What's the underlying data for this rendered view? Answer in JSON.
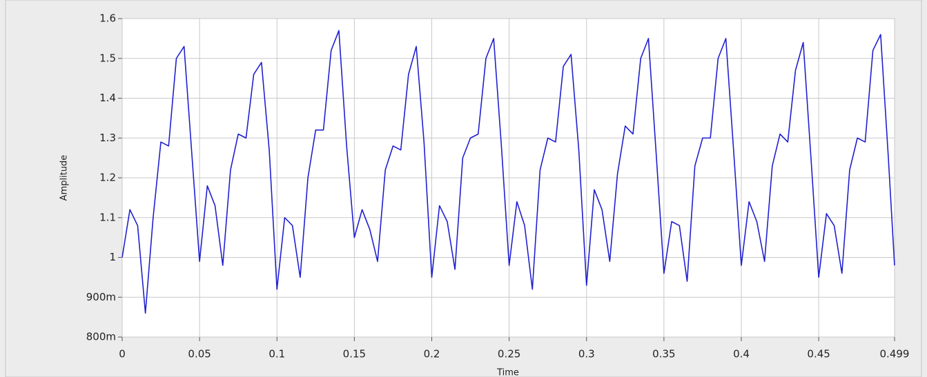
{
  "chart_data": {
    "type": "line",
    "x_label": "Time",
    "y_label": "Amplitude",
    "x": [
      0,
      0.005,
      0.01,
      0.015,
      0.02,
      0.025,
      0.03,
      0.035,
      0.04,
      0.045,
      0.05,
      0.055,
      0.06,
      0.065,
      0.07,
      0.075,
      0.08,
      0.085,
      0.09,
      0.095,
      0.1,
      0.105,
      0.11,
      0.115,
      0.12,
      0.125,
      0.13,
      0.135,
      0.14,
      0.145,
      0.15,
      0.155,
      0.16,
      0.165,
      0.17,
      0.175,
      0.18,
      0.185,
      0.19,
      0.195,
      0.2,
      0.205,
      0.21,
      0.215,
      0.22,
      0.225,
      0.23,
      0.235,
      0.24,
      0.245,
      0.25,
      0.255,
      0.26,
      0.265,
      0.27,
      0.275,
      0.28,
      0.285,
      0.29,
      0.295,
      0.3,
      0.305,
      0.31,
      0.315,
      0.32,
      0.325,
      0.33,
      0.335,
      0.34,
      0.345,
      0.35,
      0.355,
      0.36,
      0.365,
      0.37,
      0.375,
      0.38,
      0.385,
      0.39,
      0.395,
      0.4,
      0.405,
      0.41,
      0.415,
      0.42,
      0.425,
      0.43,
      0.435,
      0.44,
      0.445,
      0.45,
      0.455,
      0.46,
      0.465,
      0.47,
      0.475,
      0.48,
      0.485,
      0.49,
      0.495,
      0.499
    ],
    "series": [
      {
        "color": "#1f1fd0",
        "values": [
          1.0,
          1.12,
          1.08,
          0.86,
          1.1,
          1.29,
          1.28,
          1.5,
          1.53,
          1.26,
          0.99,
          1.18,
          1.13,
          0.98,
          1.22,
          1.31,
          1.3,
          1.46,
          1.49,
          1.27,
          0.92,
          1.1,
          1.08,
          0.95,
          1.2,
          1.32,
          1.32,
          1.52,
          1.57,
          1.28,
          1.05,
          1.12,
          1.07,
          0.99,
          1.22,
          1.28,
          1.27,
          1.46,
          1.53,
          1.29,
          0.95,
          1.13,
          1.09,
          0.97,
          1.25,
          1.3,
          1.31,
          1.5,
          1.55,
          1.28,
          0.98,
          1.14,
          1.08,
          0.92,
          1.22,
          1.3,
          1.29,
          1.48,
          1.51,
          1.27,
          0.93,
          1.17,
          1.12,
          0.99,
          1.21,
          1.33,
          1.31,
          1.5,
          1.55,
          1.26,
          0.96,
          1.09,
          1.08,
          0.94,
          1.23,
          1.3,
          1.3,
          1.5,
          1.55,
          1.27,
          0.98,
          1.14,
          1.09,
          0.99,
          1.23,
          1.31,
          1.29,
          1.47,
          1.54,
          1.25,
          0.95,
          1.11,
          1.08,
          0.96,
          1.22,
          1.3,
          1.29,
          1.52,
          1.56,
          1.25,
          0.98
        ]
      }
    ],
    "xlim": [
      0,
      0.499
    ],
    "xticks": [
      0,
      0.05,
      0.1,
      0.15,
      0.2,
      0.25,
      0.3,
      0.35,
      0.4,
      0.45,
      0.499
    ],
    "ylim": [
      0.8,
      1.6
    ],
    "yticks": [
      {
        "value": 0.8,
        "label": "800m"
      },
      {
        "value": 0.9,
        "label": "900m"
      },
      1,
      1.1,
      1.2,
      1.3,
      1.4,
      1.5,
      1.6
    ],
    "grid": true
  }
}
